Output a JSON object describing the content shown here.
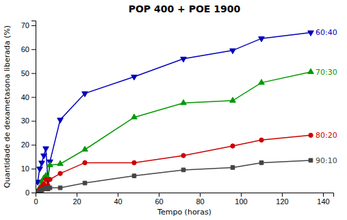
{
  "chart_data": {
    "type": "line",
    "title": "POP 400 + POE 1900",
    "x_label": "Tempo (horas)",
    "y_label": "Quantidade de dexametasona liberada (%)",
    "x": [
      1,
      2,
      3,
      4,
      5,
      6,
      7,
      12,
      24,
      48,
      72,
      96,
      110,
      134
    ],
    "xlim": [
      0,
      145
    ],
    "ylim": [
      0,
      72
    ],
    "xticks": [
      0,
      20,
      40,
      60,
      80,
      100,
      120,
      140
    ],
    "yticks": [
      0,
      10,
      20,
      30,
      40,
      50,
      60,
      70
    ],
    "grid": false,
    "series": [
      {
        "name": "60:40",
        "color": "#0000bb",
        "marker": "triangle-down",
        "values": [
          4.5,
          10.0,
          12.5,
          15.5,
          18.5,
          5.0,
          13.0,
          30.5,
          41.5,
          48.5,
          56.0,
          59.5,
          64.5,
          67.0
        ]
      },
      {
        "name": "70:30",
        "color": "#009900",
        "marker": "triangle-up",
        "values": [
          0.5,
          2.0,
          4.5,
          6.0,
          7.0,
          6.0,
          11.5,
          12.0,
          18.0,
          31.5,
          37.5,
          38.5,
          46.0,
          50.5
        ]
      },
      {
        "name": "80:20",
        "color": "#cc0000",
        "marker": "circle",
        "values": [
          0.5,
          1.5,
          2.5,
          3.5,
          5.5,
          3.0,
          5.5,
          8.0,
          12.5,
          12.5,
          15.5,
          19.5,
          22.0,
          24.0
        ]
      },
      {
        "name": "90:10",
        "color": "#444444",
        "marker": "square",
        "values": [
          0.2,
          0.5,
          1.0,
          1.5,
          2.0,
          1.5,
          2.0,
          2.0,
          4.0,
          7.0,
          9.5,
          10.5,
          12.5,
          13.5
        ]
      }
    ]
  }
}
